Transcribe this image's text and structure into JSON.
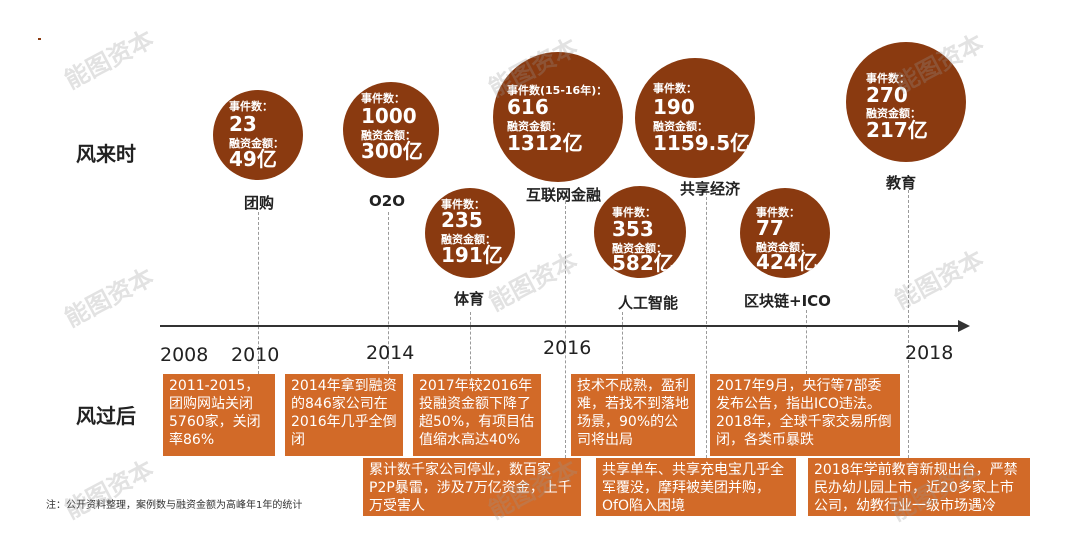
{
  "row_labels": {
    "top": "风来时",
    "bottom": "风过后"
  },
  "labels": {
    "count": "事件数：",
    "amount": "融资金额："
  },
  "sectors": [
    {
      "name": "团购",
      "count_label": "事件数：",
      "count": "23",
      "amount": "49亿"
    },
    {
      "name": "O2O",
      "count_label": "事件数：",
      "count": "1000",
      "amount": "300亿"
    },
    {
      "name": "体育",
      "count_label": "事件数：",
      "count": "235",
      "amount": "191亿"
    },
    {
      "name": "互联网金融",
      "count_label": "事件数(15-16年)：",
      "count": "616",
      "amount": "1312亿"
    },
    {
      "name": "人工智能",
      "count_label": "事件数：",
      "count": "353",
      "amount": "582亿"
    },
    {
      "name": "共享经济",
      "count_label": "事件数：",
      "count": "190",
      "amount": "1159.5亿"
    },
    {
      "name": "区块链+ICO",
      "count_label": "事件数：",
      "count": "77",
      "amount": "424亿"
    },
    {
      "name": "教育",
      "count_label": "事件数：",
      "count": "270",
      "amount": "217亿"
    }
  ],
  "years": [
    "2008",
    "2010",
    "2014",
    "2016",
    "2018"
  ],
  "aftermath": [
    "2011-2015，团购网站关闭5760家，关闭率86%",
    "2014年拿到融资的846家公司在2016年几乎全倒闭",
    "2017年较2016年投融资金额下降了超50%，有项目估值缩水高达40%",
    "技术不成熟，盈利难，若找不到落地场景，90%的公司将出局",
    "2017年9月，央行等7部委发布公告，指出ICO违法。2018年，全球千家交易所倒闭，各类币暴跌",
    "累计数千家公司停业，数百家P2P暴雷，涉及7万亿资金，上千万受害人",
    "共享单车、共享充电宝几乎全军覆没，摩拜被美团并购，OfO陷入困境",
    "2018年学前教育新规出台，严禁民办幼儿园上市，近20多家上市公司，幼教行业一级市场遇冷"
  ],
  "note": "注：公开资料整理，案例数与融资金额为高峰年1年的统计",
  "watermark": "能图资本",
  "colors": {
    "bubble": "#8a3a10",
    "box": "#d26a28",
    "axis": "#333333"
  }
}
